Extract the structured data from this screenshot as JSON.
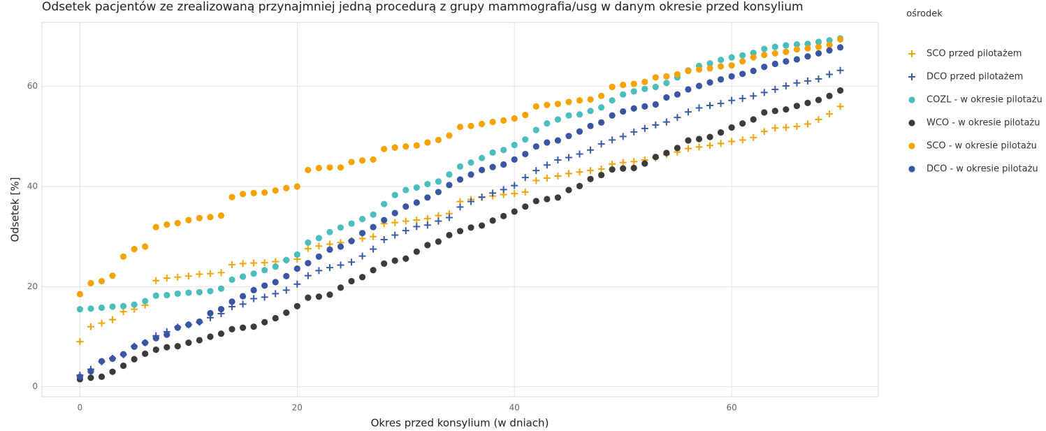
{
  "chart_data": {
    "type": "scatter",
    "title": "Odsetek pacjentów ze zrealizowaną przynajmniej jedną procedurą z grupy mammografia/usg w danym okresie przed konsylium",
    "x_label": "Okres przed konsylium (w dniach)",
    "y_label": "Odsetek [%]",
    "legend_title": "ośrodek",
    "legend_position": "right",
    "grid": true,
    "xlim": [
      -3.5,
      73.5
    ],
    "xticks": [
      0,
      20,
      40,
      60
    ],
    "ylim": [
      -2,
      72.8
    ],
    "yticks": [
      0,
      20,
      40,
      60
    ],
    "x": [
      0,
      1,
      2,
      3,
      4,
      5,
      6,
      7,
      8,
      9,
      10,
      11,
      12,
      13,
      14,
      15,
      16,
      17,
      18,
      19,
      20,
      21,
      22,
      23,
      24,
      25,
      26,
      27,
      28,
      29,
      30,
      31,
      32,
      33,
      34,
      35,
      36,
      37,
      38,
      39,
      40,
      41,
      42,
      43,
      44,
      45,
      46,
      47,
      48,
      49,
      50,
      51,
      52,
      53,
      54,
      55,
      56,
      57,
      58,
      59,
      60,
      61,
      62,
      63,
      64,
      65,
      66,
      67,
      68,
      69,
      70
    ],
    "series": [
      {
        "name": "SCO przed pilotażem",
        "color": "#f0a30a",
        "marker": "cross",
        "values": [
          9,
          12,
          12.7,
          13.4,
          15,
          15.5,
          16.3,
          21.2,
          21.7,
          21.9,
          22.1,
          22.5,
          22.6,
          22.8,
          24.4,
          24.6,
          24.7,
          24.8,
          25,
          25.3,
          25.5,
          27.6,
          28.1,
          28.5,
          28.8,
          29.2,
          29.6,
          30,
          32.6,
          32.8,
          33.1,
          33.3,
          33.6,
          34.2,
          34.6,
          37,
          37.4,
          37.8,
          38.1,
          38.4,
          38.6,
          38.9,
          41.2,
          41.7,
          42.1,
          42.6,
          42.9,
          43.2,
          43.5,
          44.5,
          44.8,
          45,
          45.3,
          45.7,
          46.4,
          46.9,
          47.6,
          47.9,
          48.2,
          48.6,
          49,
          49.3,
          49.8,
          51,
          51.7,
          51.8,
          52,
          52.5,
          53.4,
          54.5,
          56
        ]
      },
      {
        "name": "DCO przed pilotażem",
        "color": "#3a5ba6",
        "marker": "cross",
        "values": [
          2.3,
          3.5,
          5,
          5.7,
          6.4,
          8.1,
          8.8,
          10.2,
          11,
          11.9,
          12.4,
          12.9,
          13.8,
          14.6,
          16,
          16.5,
          17.6,
          17.9,
          18.6,
          19.3,
          20.5,
          22.2,
          23.2,
          23.8,
          24.3,
          24.9,
          26.1,
          27.5,
          29.4,
          30.3,
          31.2,
          32,
          32.3,
          33.1,
          33.8,
          35.9,
          37,
          37.9,
          38.7,
          39.4,
          40.2,
          41.8,
          43.2,
          44.3,
          45.3,
          45.8,
          46.5,
          47.3,
          48.5,
          49.3,
          50,
          50.9,
          51.6,
          52.3,
          52.9,
          53.8,
          54.9,
          55.7,
          56.2,
          56.6,
          57.2,
          57.6,
          58.1,
          58.8,
          59.4,
          60.1,
          60.7,
          61.1,
          61.5,
          62.4,
          63.2
        ]
      },
      {
        "name": "COZL - w okresie pilotażu",
        "color": "#4bbdbd",
        "marker": "circle",
        "values": [
          15.5,
          15.6,
          15.8,
          16,
          16.1,
          16.4,
          17.1,
          18.2,
          18.3,
          18.6,
          18.8,
          18.9,
          19.1,
          19.6,
          21.4,
          22,
          22.6,
          23.3,
          24,
          25.3,
          26.4,
          28.8,
          29.7,
          30.9,
          31.8,
          32.6,
          33.5,
          34.4,
          36.5,
          38.3,
          39.3,
          39.8,
          40.5,
          41,
          42.4,
          44,
          44.8,
          45.7,
          46.8,
          47.3,
          48.3,
          49.4,
          51.3,
          52.6,
          53.4,
          54.2,
          54.4,
          55.1,
          55.8,
          57.2,
          58.4,
          59,
          59.5,
          59.9,
          60.7,
          61.8,
          63.2,
          64.1,
          64.6,
          65.3,
          65.8,
          66.2,
          66.7,
          67.5,
          67.9,
          68.2,
          68.4,
          68.5,
          68.9,
          69.2,
          69.6
        ]
      },
      {
        "name": "WCO - w okresie pilotażu",
        "color": "#3b3b3b",
        "marker": "circle",
        "values": [
          1.5,
          1.8,
          2,
          3,
          4.2,
          5.5,
          6.6,
          7.4,
          7.9,
          8.1,
          8.8,
          9.3,
          10,
          10.6,
          11.5,
          11.8,
          12,
          12.9,
          13.7,
          14.8,
          16.1,
          17.8,
          18,
          18.4,
          19.8,
          21.1,
          21.9,
          23.3,
          24.6,
          25.2,
          25.6,
          27,
          28.3,
          29,
          30.3,
          31.1,
          31.8,
          32.2,
          33.2,
          34.1,
          35,
          36,
          37.1,
          37.5,
          37.8,
          39.3,
          40.1,
          41.5,
          42.3,
          43.4,
          43.6,
          43.7,
          44.6,
          45.9,
          46.7,
          47.7,
          49.2,
          49.5,
          49.9,
          50.8,
          51.8,
          52.6,
          53.4,
          54.8,
          55.1,
          55.4,
          56.1,
          56.7,
          57.3,
          58.1,
          59.2
        ]
      },
      {
        "name": "SCO - w okresie pilotażu",
        "color": "#f5a300",
        "marker": "circle",
        "values": [
          18.5,
          20.7,
          21.1,
          22.2,
          26,
          27.5,
          28,
          31.9,
          32.4,
          32.7,
          33.3,
          33.7,
          33.9,
          34.2,
          37.9,
          38.5,
          38.7,
          38.8,
          39.2,
          39.7,
          40,
          43.3,
          43.7,
          43.8,
          43.8,
          44.9,
          45.2,
          45.4,
          47.5,
          47.8,
          48,
          48.2,
          48.8,
          49.3,
          50.2,
          51.9,
          52.1,
          52.5,
          52.9,
          53.2,
          53.6,
          54.3,
          56,
          56.3,
          56.5,
          56.9,
          57.2,
          57.4,
          58.1,
          59.9,
          60.3,
          60.5,
          60.9,
          61.8,
          62,
          62.4,
          63.1,
          63.4,
          63.6,
          64,
          64.2,
          65,
          65.8,
          66.3,
          66.6,
          66.9,
          67.4,
          67.6,
          67.9,
          68.3,
          69.4
        ]
      },
      {
        "name": "DCO - w okresie pilotażu",
        "color": "#3a56a3",
        "marker": "circle",
        "values": [
          2,
          3.1,
          5.1,
          5.6,
          6.5,
          8,
          8.8,
          9.7,
          10.4,
          11.8,
          12.4,
          13,
          14.7,
          15.5,
          17,
          18.1,
          19.3,
          20.2,
          20.9,
          22.1,
          23.6,
          24.7,
          26,
          27.4,
          28,
          29.1,
          30.7,
          31.9,
          33.3,
          34.7,
          36,
          36.8,
          37.8,
          38.9,
          40.3,
          41.4,
          42.4,
          43.3,
          43.9,
          44.4,
          45.4,
          46.5,
          48,
          48.8,
          49.2,
          50.1,
          51,
          52.1,
          52.8,
          54.2,
          55,
          55.6,
          56,
          56.4,
          57.8,
          58.4,
          59.4,
          60.1,
          60.8,
          61.4,
          62,
          62.5,
          63.1,
          63.9,
          64.5,
          65,
          65.4,
          66,
          66.6,
          67.2,
          67.8
        ]
      }
    ]
  }
}
